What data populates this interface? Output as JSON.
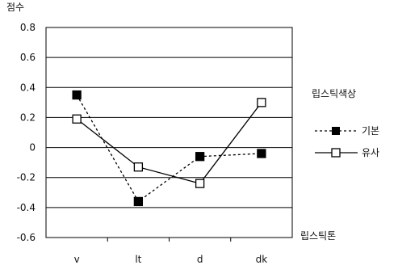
{
  "chart_data": {
    "type": "line",
    "ylabel": "점수",
    "xlabel": "립스틱톤",
    "categories": [
      "v",
      "lt",
      "d",
      "dk"
    ],
    "ylim": [
      -0.6,
      0.8
    ],
    "yticks": [
      0.8,
      0.6,
      0.4,
      0.2,
      0,
      -0.2,
      -0.4,
      -0.6
    ],
    "ytick_labels": [
      "0.8",
      "0.6",
      "0.4",
      "0.2",
      "0",
      "-0.2",
      "-0.4",
      "-0.6"
    ],
    "grid": "horizontal",
    "legend_title": "립스틱색상",
    "legend_position": "right",
    "series": [
      {
        "name": "기본",
        "values": [
          0.35,
          -0.36,
          -0.06,
          -0.04
        ],
        "line_style": "dotted",
        "marker": "filled-square",
        "color": "#000000"
      },
      {
        "name": "유사",
        "values": [
          0.19,
          -0.13,
          -0.24,
          0.3
        ],
        "line_style": "solid",
        "marker": "open-square",
        "color": "#000000"
      }
    ]
  }
}
